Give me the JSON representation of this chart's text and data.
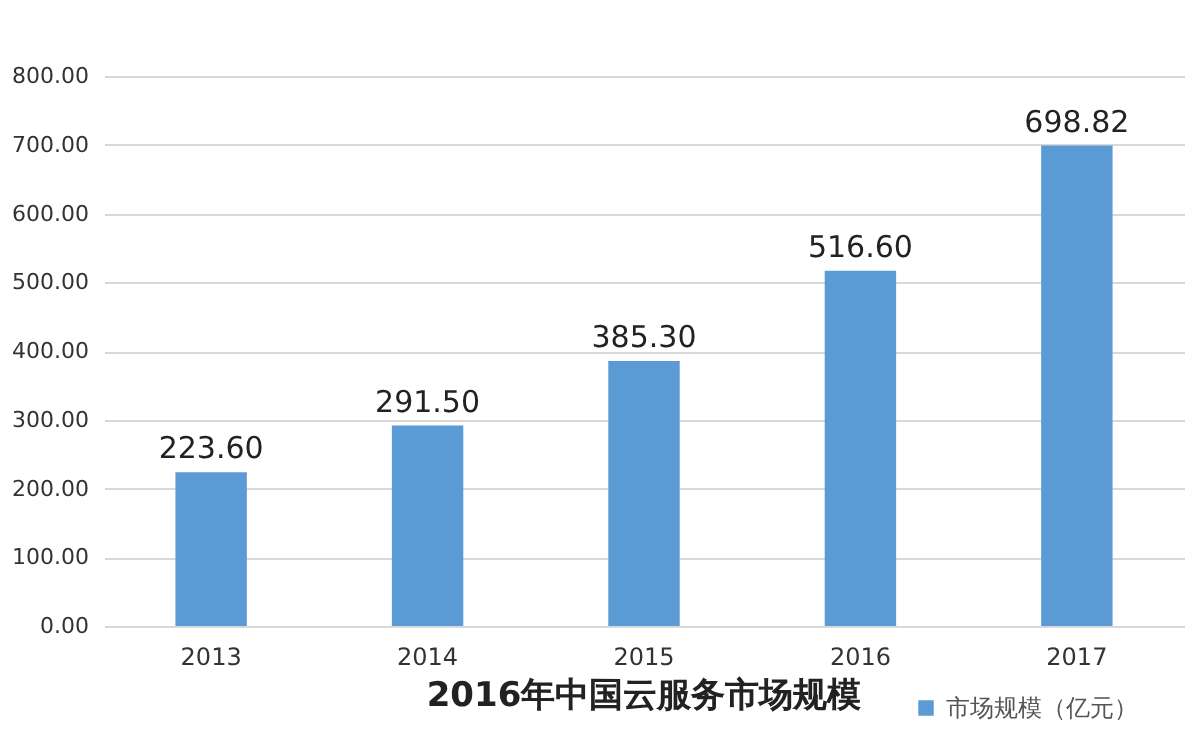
{
  "chart_data": {
    "type": "bar",
    "title": "2016年中国云服务市场规模",
    "categories": [
      "2013",
      "2014",
      "2015",
      "2016",
      "2017"
    ],
    "series": [
      {
        "name": "市场规模（亿元）",
        "color": "#5b9bd5",
        "values": [
          223.6,
          291.5,
          385.3,
          516.6,
          698.82
        ],
        "value_labels": [
          "223.60",
          "291.50",
          "385.30",
          "516.60",
          "698.82"
        ]
      }
    ],
    "ylim": [
      0,
      800
    ],
    "yticks": [
      {
        "value": 0,
        "label": "0.00"
      },
      {
        "value": 100,
        "label": "100.00"
      },
      {
        "value": 200,
        "label": "200.00"
      },
      {
        "value": 300,
        "label": "300.00"
      },
      {
        "value": 400,
        "label": "400.00"
      },
      {
        "value": 500,
        "label": "500.00"
      },
      {
        "value": 600,
        "label": "600.00"
      },
      {
        "value": 700,
        "label": "700.00"
      },
      {
        "value": 800,
        "label": "800.00"
      }
    ],
    "grid": "y",
    "legend": "bottom right"
  }
}
